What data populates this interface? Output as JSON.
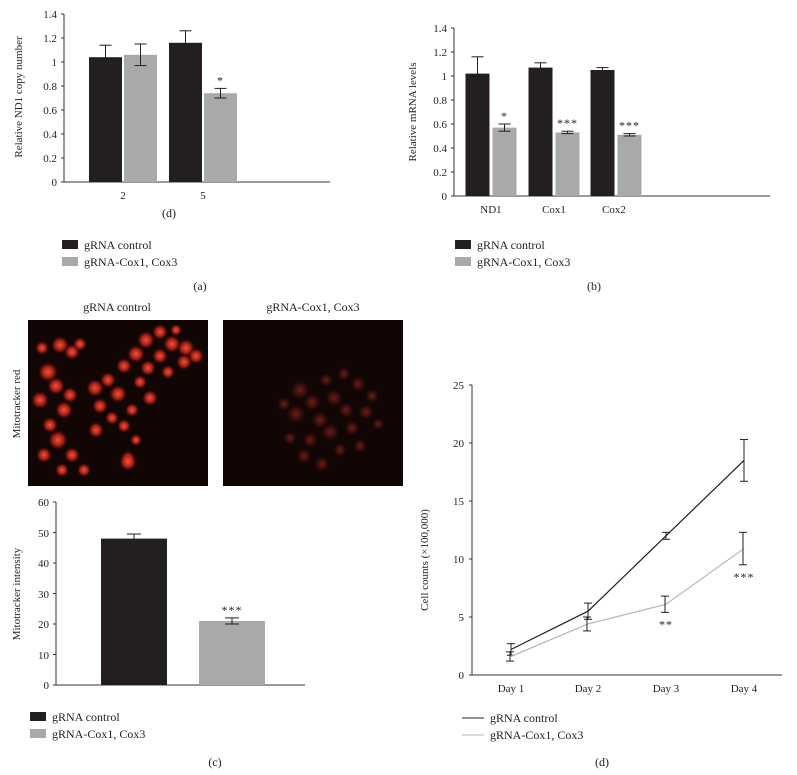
{
  "colors": {
    "control": "#231f20",
    "knockdown": "#a8a9ab",
    "control_line": "#231f20",
    "knockdown_line": "#b5b5b5",
    "micro_bg": "#120605",
    "micro_red": "#d2281c"
  },
  "chart_data": [
    {
      "id": "panel-a",
      "type": "bar",
      "panel_label": "(a)",
      "inner_caption": "(d)",
      "ylabel": "Relative ND1 copy number",
      "xlabel": "",
      "ylim": [
        0,
        1.4
      ],
      "yticks": [
        "0",
        "0.2",
        "0.4",
        "0.6",
        "0.8",
        "1",
        "1.2",
        "1.4"
      ],
      "categories": [
        "2",
        "5"
      ],
      "series": [
        {
          "name": "gRNA control",
          "values": [
            1.04,
            1.16
          ],
          "errors": [
            0.1,
            0.1
          ]
        },
        {
          "name": "gRNA-Cox1, Cox3",
          "values": [
            1.06,
            0.74
          ],
          "errors": [
            0.09,
            0.04
          ]
        }
      ],
      "annotations": [
        "",
        "*"
      ],
      "legend": [
        "gRNA control",
        "gRNA-Cox1, Cox3"
      ]
    },
    {
      "id": "panel-b",
      "type": "bar",
      "panel_label": "(b)",
      "ylabel": "Relative mRNA levels",
      "xlabel": "",
      "ylim": [
        0,
        1.4
      ],
      "yticks": [
        "0",
        "0.2",
        "0.4",
        "0.6",
        "0.8",
        "1",
        "1.2",
        "1.4"
      ],
      "categories": [
        "ND1",
        "Cox1",
        "Cox2"
      ],
      "series": [
        {
          "name": "gRNA control",
          "values": [
            1.02,
            1.07,
            1.05
          ],
          "errors": [
            0.14,
            0.04,
            0.02
          ]
        },
        {
          "name": "gRNA-Cox1, Cox3",
          "values": [
            0.57,
            0.53,
            0.51
          ],
          "errors": [
            0.03,
            0.01,
            0.01
          ]
        }
      ],
      "annotations": [
        "*",
        "***",
        "***"
      ],
      "legend": [
        "gRNA control",
        "gRNA-Cox1, Cox3"
      ]
    },
    {
      "id": "panel-c",
      "type": "bar",
      "panel_label": "(c)",
      "ylabel": "Mitotracker intensity",
      "xlabel": "",
      "ylim": [
        0,
        60
      ],
      "yticks": [
        "0",
        "10",
        "20",
        "30",
        "40",
        "50",
        "60"
      ],
      "categories": [
        "gRNA control",
        "gRNA-Cox1, Cox3"
      ],
      "values": [
        48,
        21
      ],
      "errors": [
        1.5,
        1
      ],
      "annotations": [
        "",
        "***"
      ],
      "legend": [
        "gRNA control",
        "gRNA-Cox1, Cox3"
      ],
      "micrograph_titles": [
        "gRNA control",
        "gRNA-Cox1, Cox3"
      ],
      "micrograph_side_label": "Mitotracker red"
    },
    {
      "id": "panel-d",
      "type": "line",
      "panel_label": "(d)",
      "ylabel": "Cell counts (×100,000)",
      "xlabel": "",
      "ylim": [
        0,
        25
      ],
      "yticks": [
        "0",
        "5",
        "10",
        "15",
        "20",
        "25"
      ],
      "categories": [
        "Day 1",
        "Day 2",
        "Day 3",
        "Day 4"
      ],
      "series": [
        {
          "name": "gRNA control",
          "values": [
            2.2,
            5.5,
            12.0,
            18.5
          ],
          "errors": [
            0.5,
            0.7,
            0.3,
            1.8
          ]
        },
        {
          "name": "gRNA-Cox1, Cox3",
          "values": [
            1.6,
            4.4,
            6.1,
            10.9
          ],
          "errors": [
            0.4,
            0.6,
            0.7,
            1.4
          ]
        }
      ],
      "annotations": [
        "",
        "",
        "**",
        "***"
      ],
      "legend": [
        "gRNA control",
        "gRNA-Cox1, Cox3"
      ]
    }
  ]
}
